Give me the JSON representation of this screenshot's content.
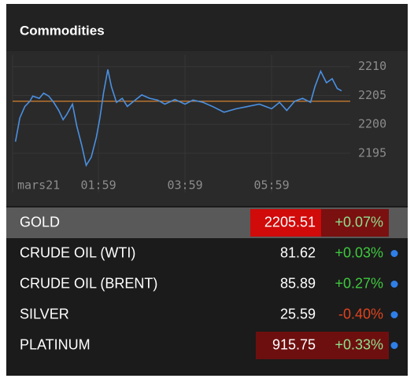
{
  "header": {
    "title": "Commodities"
  },
  "chart_data": {
    "type": "line",
    "x": [
      4,
      10,
      17,
      24,
      28,
      37,
      43,
      50,
      57,
      64,
      70,
      75,
      83,
      89,
      96,
      102,
      109,
      116,
      121,
      126,
      132,
      137,
      144,
      152,
      159,
      168,
      179,
      190,
      201,
      211,
      225,
      239,
      250,
      264,
      277,
      293,
      310,
      326,
      342,
      359,
      370,
      380,
      391,
      402,
      413,
      419,
      427,
      435,
      443,
      450,
      456
    ],
    "series": [
      {
        "color": "#4a90e2",
        "values": [
          2197.0,
          2201.1,
          2203.1,
          2204.0,
          2204.9,
          2204.5,
          2205.4,
          2204.9,
          2203.8,
          2202.4,
          2200.8,
          2201.7,
          2203.5,
          2199.7,
          2196.3,
          2192.9,
          2194.3,
          2197.7,
          2201.1,
          2205.4,
          2209.5,
          2206.5,
          2203.8,
          2204.5,
          2203.1,
          2204.0,
          2205.1,
          2204.5,
          2204.2,
          2203.5,
          2204.3,
          2203.5,
          2204.2,
          2203.8,
          2203.1,
          2202.1,
          2202.7,
          2203.1,
          2203.5,
          2202.7,
          2203.8,
          2202.4,
          2204.0,
          2204.5,
          2203.8,
          2206.5,
          2209.2,
          2207.2,
          2207.9,
          2206.2,
          2205.8
        ]
      }
    ],
    "reference_line": {
      "value": 2204,
      "color": "#b8732e"
    },
    "xlim": [
      0,
      468
    ],
    "xticks": [
      {
        "value": 0,
        "label": "mars21"
      },
      {
        "value": 119,
        "label": "01:59"
      },
      {
        "value": 239,
        "label": "03:59"
      },
      {
        "value": 359,
        "label": "05:59"
      }
    ],
    "ylim": [
      2192,
      2212
    ],
    "yticks": [
      2195,
      2200,
      2205,
      2210
    ],
    "grid": true
  },
  "table": {
    "rows": [
      {
        "name": "GOLD",
        "price": 2205.51,
        "change": "+0.07%",
        "row_bg": "#595959",
        "price_bg": "#d10a0a",
        "change_bg": "#7a1010",
        "change_color": "#8ee08e",
        "dot": false
      },
      {
        "name": "CRUDE OIL (WTI)",
        "price": 81.62,
        "change": "+0.03%",
        "change_color": "#3ec93e",
        "dot": true
      },
      {
        "name": "CRUDE OIL (BRENT)",
        "price": 85.89,
        "change": "+0.27%",
        "change_color": "#3ec93e",
        "dot": true
      },
      {
        "name": "SILVER",
        "price": 25.59,
        "change": "-0.40%",
        "change_color": "#e2431e",
        "dot": true
      },
      {
        "name": "PLATINUM",
        "price": 915.75,
        "change": "+0.33%",
        "price_bg": "#6e0f0f",
        "change_bg": "#6e0f0f",
        "change_color": "#8ee08e",
        "dot": true
      }
    ]
  }
}
